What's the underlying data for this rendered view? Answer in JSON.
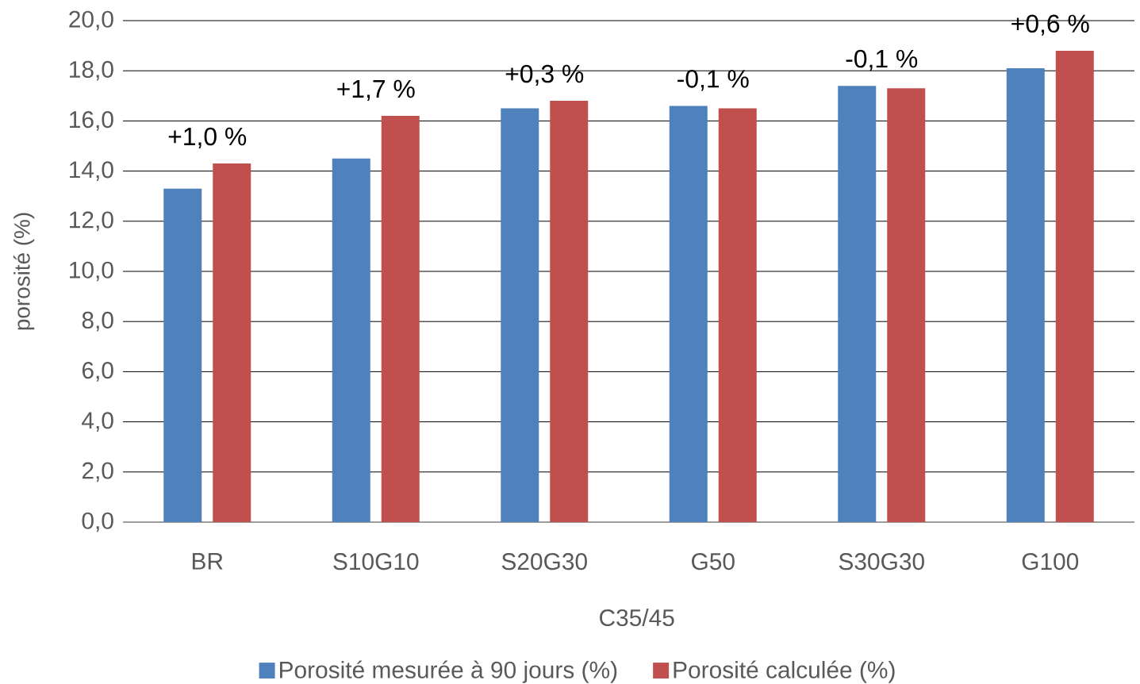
{
  "chart_data": {
    "type": "bar",
    "categories": [
      "BR",
      "S10G10",
      "S20G30",
      "G50",
      "S30G30",
      "G100"
    ],
    "xlabel": "C35/45",
    "ylabel": "porosité (%)",
    "series": [
      {
        "name": "Porosité mesurée à 90 jours (%)",
        "color": "#4f81bd",
        "values": [
          13.3,
          14.5,
          16.5,
          16.6,
          17.4,
          18.1
        ]
      },
      {
        "name": "Porosité calculée (%)",
        "color": "#c0504d",
        "values": [
          14.3,
          16.2,
          16.8,
          16.5,
          17.3,
          18.8
        ]
      }
    ],
    "ylim": [
      0,
      20
    ],
    "yticks": [
      {
        "value": 0,
        "label": "0,0"
      },
      {
        "value": 2,
        "label": "2,0"
      },
      {
        "value": 4,
        "label": "4,0"
      },
      {
        "value": 6,
        "label": "6,0"
      },
      {
        "value": 8,
        "label": "8,0"
      },
      {
        "value": 10,
        "label": "10,0"
      },
      {
        "value": 12,
        "label": "12,0"
      },
      {
        "value": 14,
        "label": "14,0"
      },
      {
        "value": 16,
        "label": "16,0"
      },
      {
        "value": 18,
        "label": "18,0"
      },
      {
        "value": 20,
        "label": "20,0"
      }
    ],
    "annotations": [
      "+1,0 %",
      "+1,7 %",
      "+0,3 %",
      "-0,1 %",
      "-0,1 %",
      "+0,6 %"
    ],
    "grid": "y",
    "legend": "bottom"
  }
}
